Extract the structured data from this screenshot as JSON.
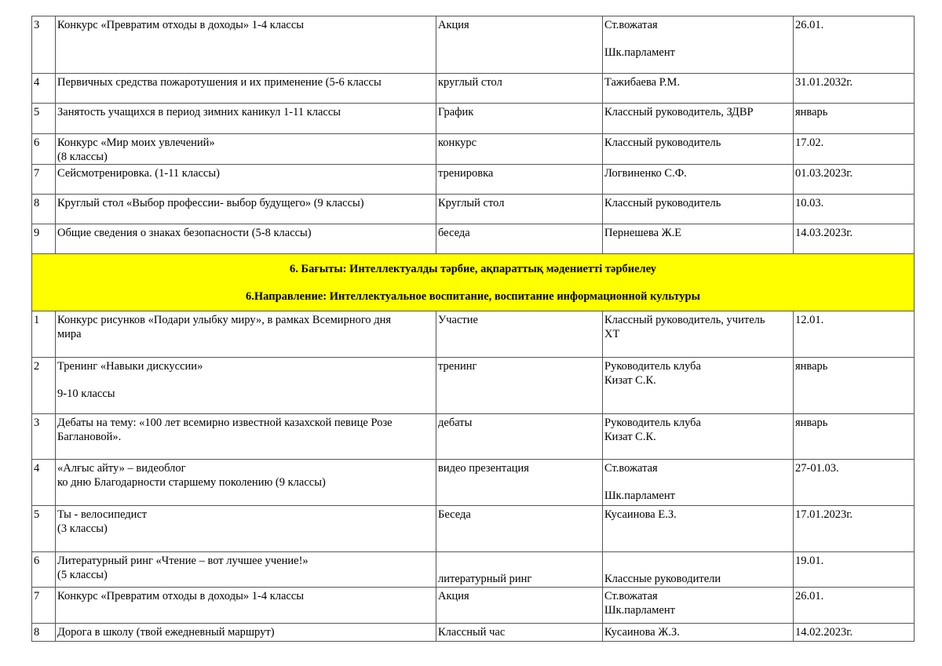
{
  "section_before": [
    {
      "num": "3",
      "event": [
        "Конкурс  «Превратим отходы в доходы» 1-4 классы"
      ],
      "form": [
        "Акция"
      ],
      "responsible": [
        "Ст.вожатая",
        "",
        "Шк.парламент"
      ],
      "date": [
        "26.01."
      ]
    },
    {
      "num": "4",
      "event": [
        "Первичных средства пожаротушения и их применение (5-6 классы"
      ],
      "form": [
        "круглый стол"
      ],
      "responsible": [
        "Тажибаева Р.М."
      ],
      "date": [
        "31.01.2032г."
      ]
    },
    {
      "num": "5",
      "event": [
        "Занятость учащихся в период зимних каникул 1-11 классы"
      ],
      "form": [
        "График"
      ],
      "responsible": [
        "Классный руководитель, ЗДВР"
      ],
      "date": [
        "январь"
      ]
    },
    {
      "num": "6",
      "event": [
        "Конкурс  «Мир моих увлечений»",
        "(8 классы)"
      ],
      "form": [
        "конкурс"
      ],
      "responsible": [
        "Классный руководитель"
      ],
      "date": [
        "17.02."
      ]
    },
    {
      "num": "7",
      "event": [
        "Сейсмотренировка. (1-11 классы)"
      ],
      "form": [
        "тренировка"
      ],
      "responsible": [
        "Логвиненко С.Ф."
      ],
      "date": [
        "01.03.2023г."
      ]
    },
    {
      "num": "8",
      "event": [
        " Круглый стол «Выбор профессии- выбор будущего» (9 классы)"
      ],
      "form": [
        "Круглый стол"
      ],
      "responsible": [
        "Классный руководитель"
      ],
      "date": [
        "10.03."
      ]
    },
    {
      "num": "9",
      "event": [
        "Общие сведения о знаках безопасности (5-8 классы)"
      ],
      "form": [
        "беседа"
      ],
      "responsible": [
        "Пернешева Ж.Е"
      ],
      "date": [
        "14.03.2023г."
      ]
    }
  ],
  "banner": {
    "title_kz": "6. Бағыты: Интеллектуалды тәрбие, ақпараттық мәдениетті тәрбиелеу",
    "title_ru": "6.Направление: Интеллектуальное воспитание, воспитание информационной культуры",
    "background": "#ffff00"
  },
  "section_after": [
    {
      "num": "1",
      "event": [
        "Конкурс рисунков «Подари улыбку миру», в рамках Всемирного дня",
        "мира"
      ],
      "form": [
        "Участие"
      ],
      "responsible": [
        "Классный руководитель, учитель",
        "ХТ"
      ],
      "date": [
        "12.01."
      ]
    },
    {
      "num": "2",
      "event": [
        "Тренинг «Навыки дискуссии»",
        "",
        "9-10 классы"
      ],
      "form": [
        "тренинг"
      ],
      "responsible": [
        "Руководитель клуба",
        "Кизат С.К."
      ],
      "date": [
        "январь"
      ]
    },
    {
      "num": "3",
      "event": [
        "Дебаты на тему: «100 лет всемирно известной казахской певице Розе",
        "Баглановой»."
      ],
      "form": [
        "дебаты"
      ],
      "responsible": [
        "Руководитель клуба",
        "Кизат С.К."
      ],
      "date": [
        "январь"
      ]
    },
    {
      "num": "4",
      "event": [
        "«Алғыс айту» – видеоблог",
        "ко дню Благодарности старшему поколению (9 классы)"
      ],
      "form": [
        "видео презентация"
      ],
      "responsible": [
        "Ст.вожатая",
        "",
        "Шк.парламент"
      ],
      "date": [
        "27-01.03."
      ]
    },
    {
      "num": "5",
      "event": [
        "Ты - велосипедист",
        " (3 классы)"
      ],
      "form": [
        "Беседа"
      ],
      "responsible": [
        "Кусаинова Е.З."
      ],
      "date": [
        "17.01.2023г."
      ]
    },
    {
      "num": "6",
      "event": [
        "Литературный ринг «Чтение – вот лучшее учение!»",
        "(5 классы)"
      ],
      "form": [
        "",
        "литературный ринг"
      ],
      "responsible": [
        "",
        "Классные руководители"
      ],
      "date": [
        "19.01."
      ]
    },
    {
      "num": "7",
      "event": [
        "Конкурс  «Превратим отходы в доходы» 1-4 классы"
      ],
      "form": [
        "Акция"
      ],
      "responsible": [
        "Ст.вожатая",
        "Шк.парламент"
      ],
      "date": [
        "26.01."
      ]
    },
    {
      "num": "8",
      "event": [
        "Дорога в школу (твой ежедневный маршрут)"
      ],
      "form": [
        "Классный час"
      ],
      "responsible": [
        " Кусаинова Ж.З."
      ],
      "date": [
        "14.02.2023г."
      ]
    }
  ]
}
